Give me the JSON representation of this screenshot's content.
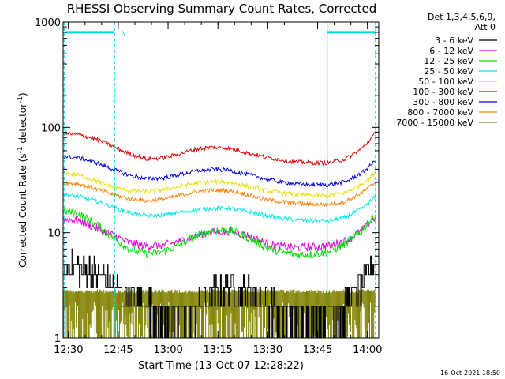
{
  "chart_data": {
    "type": "line",
    "title": "RHESSI Observing Summary Count Rates, Corrected",
    "xlabel": "Start Time (13-Oct-07 12:28:22)",
    "ylabel_main": "Corrected Count Rate (s",
    "ylabel_sup1": "-1",
    "ylabel_mid": " detector",
    "ylabel_sup2": "-1",
    "ylabel_end": ")",
    "y_scale": "log",
    "ylim": [
      1,
      1000
    ],
    "y_ticks": [
      {
        "value": 1,
        "label": "1"
      },
      {
        "value": 10,
        "label": "10"
      },
      {
        "value": 100,
        "label": "100"
      },
      {
        "value": 1000,
        "label": "1000"
      }
    ],
    "x_range_minutes": [
      0,
      95
    ],
    "x_ticks": [
      {
        "minute": 1.6,
        "label": "12:30"
      },
      {
        "minute": 16.6,
        "label": "12:45"
      },
      {
        "minute": 31.6,
        "label": "13:00"
      },
      {
        "minute": 46.6,
        "label": "13:15"
      },
      {
        "minute": 61.6,
        "label": "13:30"
      },
      {
        "minute": 76.6,
        "label": "13:45"
      },
      {
        "minute": 91.6,
        "label": "14:00"
      }
    ],
    "legend_header": [
      "Det 1,3,4,5,6,9,",
      "Att 0"
    ],
    "legend_placement": "outside-right-top",
    "timestamp": "16-Oct-2021 18:50",
    "annotations": [
      {
        "text": "N",
        "minute": 17.5,
        "y": 800,
        "color": "#00d8e8"
      }
    ],
    "attenuator_bars": [
      {
        "from": 0.5,
        "to": 15.5,
        "y": 800
      },
      {
        "from": 79.5,
        "to": 94,
        "y": 800
      }
    ],
    "vertical_markers": [
      {
        "minute": 0.3,
        "style": "dashed"
      },
      {
        "minute": 15.5,
        "style": "dashed"
      },
      {
        "minute": 79.5,
        "style": "solid"
      },
      {
        "minute": 94.0,
        "style": "dashed"
      }
    ],
    "series": [
      {
        "name": "3 - 6 keV",
        "color": "#000000",
        "kind": "noisy-low",
        "x": [
          0,
          8,
          12,
          15,
          20,
          25,
          30,
          35,
          40,
          45,
          50,
          55,
          60,
          65,
          70,
          75,
          80,
          85,
          90,
          94
        ],
        "values": [
          5,
          4.5,
          3.8,
          3,
          2.4,
          2,
          1.7,
          1.6,
          1.9,
          2.6,
          3,
          2.8,
          2.2,
          1.7,
          1.5,
          1.5,
          1.6,
          2,
          3.2,
          5.5
        ]
      },
      {
        "name": "6 - 12 keV",
        "color": "#e000e0",
        "kind": "noisy",
        "x": [
          0,
          5,
          10,
          15,
          20,
          25,
          30,
          35,
          40,
          45,
          50,
          55,
          60,
          65,
          70,
          75,
          80,
          85,
          90,
          94
        ],
        "values": [
          13.5,
          13,
          11,
          9.5,
          8,
          7.5,
          7.6,
          8.3,
          9.4,
          10.2,
          10.3,
          9.5,
          8.2,
          7.4,
          7.2,
          7.3,
          7.5,
          8.4,
          10.5,
          14
        ]
      },
      {
        "name": "12 - 25 keV",
        "color": "#00e000",
        "kind": "noisy",
        "x": [
          0,
          5,
          10,
          15,
          20,
          25,
          30,
          35,
          40,
          45,
          50,
          55,
          60,
          65,
          70,
          75,
          80,
          85,
          90,
          94
        ],
        "values": [
          16,
          15,
          12,
          9,
          7,
          6.3,
          6.6,
          7.6,
          9.2,
          10.5,
          10.6,
          9.2,
          7.6,
          6.6,
          6.2,
          6.2,
          6.6,
          7.8,
          10.5,
          15
        ]
      },
      {
        "name": "25 - 50 keV",
        "color": "#00e8e8",
        "kind": "line",
        "x": [
          0,
          5,
          10,
          15,
          20,
          25,
          30,
          35,
          40,
          45,
          50,
          55,
          60,
          65,
          70,
          75,
          80,
          85,
          90,
          94
        ],
        "values": [
          23,
          22,
          20,
          17.5,
          15.5,
          14.5,
          14.7,
          15.5,
          16.5,
          17,
          17,
          16,
          14.8,
          13.8,
          13.2,
          13,
          13,
          14,
          17,
          22
        ]
      },
      {
        "name": "50 - 100 keV",
        "color": "#e8e000",
        "kind": "line",
        "x": [
          0,
          5,
          10,
          15,
          20,
          25,
          30,
          35,
          40,
          45,
          50,
          55,
          60,
          65,
          70,
          75,
          80,
          85,
          90,
          94
        ],
        "values": [
          37,
          35,
          31,
          27,
          25,
          24.5,
          25.5,
          27.5,
          29.5,
          30.5,
          30,
          28,
          25.5,
          24,
          23,
          22.5,
          22.5,
          24,
          29,
          37
        ]
      },
      {
        "name": "100 - 300 keV",
        "color": "#e00000",
        "kind": "line",
        "x": [
          0,
          5,
          10,
          15,
          20,
          25,
          30,
          35,
          40,
          45,
          50,
          55,
          60,
          65,
          70,
          75,
          80,
          85,
          90,
          94
        ],
        "values": [
          88,
          85,
          77,
          66,
          56,
          50,
          51,
          56,
          62,
          65,
          63,
          58,
          53,
          49.5,
          47,
          46,
          46,
          50,
          63,
          88
        ]
      },
      {
        "name": "300 - 800 keV",
        "color": "#0000e0",
        "kind": "line",
        "x": [
          0,
          5,
          10,
          15,
          20,
          25,
          30,
          35,
          40,
          45,
          50,
          55,
          60,
          65,
          70,
          75,
          80,
          85,
          90,
          94
        ],
        "values": [
          53,
          51,
          46,
          40,
          35,
          32.5,
          33,
          35.5,
          38.5,
          40,
          39,
          36,
          33,
          30.5,
          29,
          28.5,
          28.5,
          30.5,
          37,
          48
        ]
      },
      {
        "name": "800 - 7000 keV",
        "color": "#ff8000",
        "kind": "line",
        "x": [
          0,
          5,
          10,
          15,
          20,
          25,
          30,
          35,
          40,
          45,
          50,
          55,
          60,
          65,
          70,
          75,
          80,
          85,
          90,
          94
        ],
        "values": [
          30,
          29,
          26,
          23,
          21,
          20,
          20.7,
          22.5,
          24.5,
          25.3,
          25,
          23,
          21,
          19.8,
          19,
          18.6,
          18.6,
          19.8,
          24,
          30
        ]
      },
      {
        "name": "7000 - 15000 keV",
        "color": "#808000",
        "kind": "band",
        "x": [
          0,
          94
        ],
        "values": [
          2.9,
          2.9
        ]
      }
    ]
  }
}
